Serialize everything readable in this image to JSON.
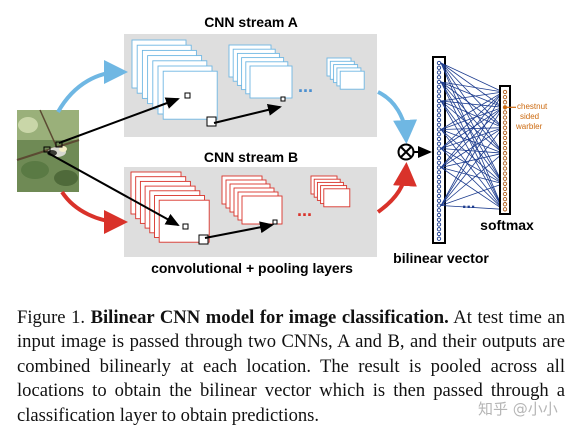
{
  "figure": {
    "stream_a_label": "CNN stream A",
    "stream_b_label": "CNN stream B",
    "layers_label": "convolutional + pooling layers",
    "bilinear_label": "bilinear vector",
    "softmax_label": "softmax",
    "class_label_line1": "chestnut",
    "class_label_line2": "sided",
    "class_label_line3": "warbler",
    "ellipsis": "...",
    "product_symbol": "⊗",
    "colors": {
      "stream_a": "#6fb7e3",
      "stream_b": "#d9322a",
      "panel": "#dedede",
      "vector": "#1e3d8f",
      "class": "#cc6a10"
    }
  },
  "caption": {
    "prefix": "Figure 1. ",
    "title": "Bilinear CNN model for image classification.",
    "body": " At test time an input image is passed through two CNNs, A and B, and their outputs are combined bilinearly at each location. The result is pooled across all locations to obtain the bilinear vector which is then passed through a classification layer to obtain predictions."
  },
  "watermark": "知乎 @小小"
}
